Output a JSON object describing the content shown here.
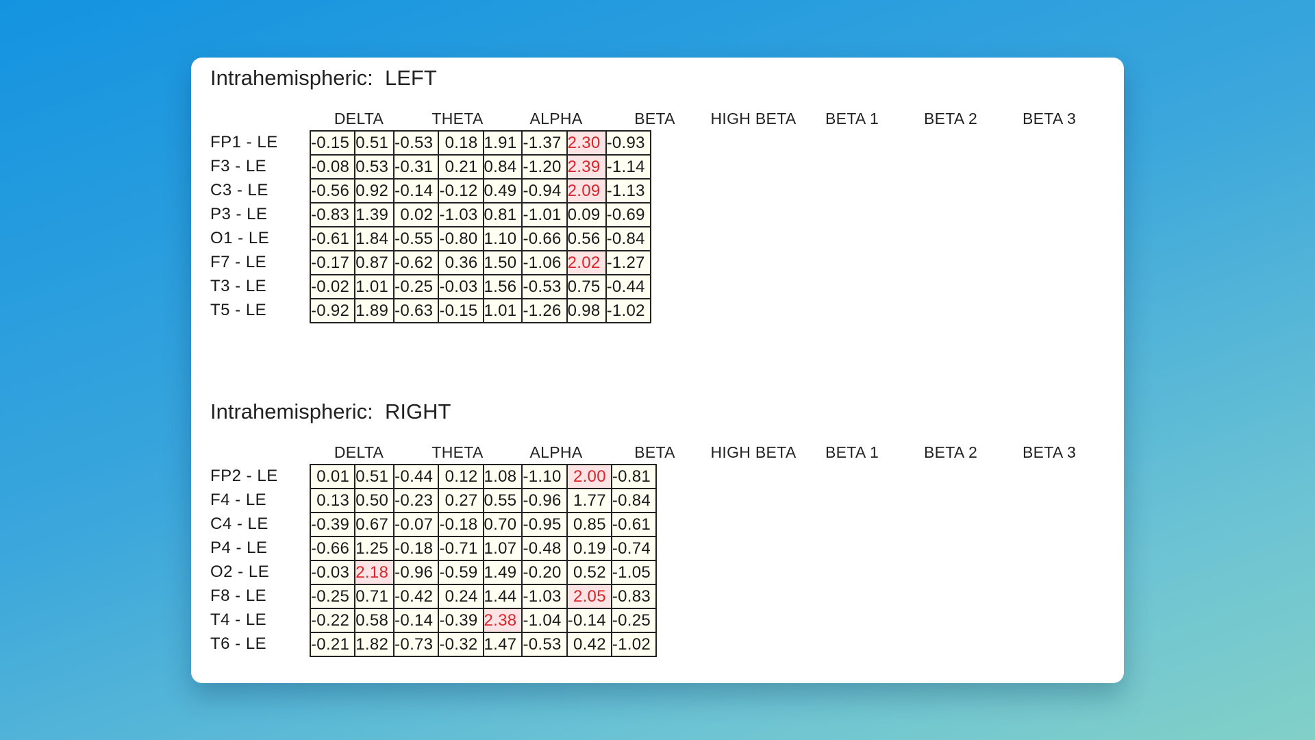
{
  "columns": [
    "DELTA",
    "THETA",
    "ALPHA",
    "BETA",
    "HIGH BETA",
    "BETA 1",
    "BETA 2",
    "BETA 3"
  ],
  "highlight_colors": {
    "background": "#fde3e4",
    "text": "#d8262c"
  },
  "left": {
    "title": "Intrahemispheric:  LEFT",
    "rows": [
      {
        "label": "FP1 - LE",
        "values": [
          "-0.15",
          "0.51",
          "-0.53",
          "0.18",
          "1.91",
          "-1.37",
          "2.30",
          "-0.93"
        ],
        "highlight": [
          6
        ]
      },
      {
        "label": "F3 - LE",
        "values": [
          "-0.08",
          "0.53",
          "-0.31",
          "0.21",
          "0.84",
          "-1.20",
          "2.39",
          "-1.14"
        ],
        "highlight": [
          6
        ]
      },
      {
        "label": "C3 - LE",
        "values": [
          "-0.56",
          "0.92",
          "-0.14",
          "-0.12",
          "0.49",
          "-0.94",
          "2.09",
          "-1.13"
        ],
        "highlight": [
          6
        ]
      },
      {
        "label": "P3 - LE",
        "values": [
          "-0.83",
          "1.39",
          "0.02",
          "-1.03",
          "0.81",
          "-1.01",
          "0.09",
          "-0.69"
        ],
        "highlight": []
      },
      {
        "label": "O1 - LE",
        "values": [
          "-0.61",
          "1.84",
          "-0.55",
          "-0.80",
          "1.10",
          "-0.66",
          "0.56",
          "-0.84"
        ],
        "highlight": []
      },
      {
        "label": "F7 - LE",
        "values": [
          "-0.17",
          "0.87",
          "-0.62",
          "0.36",
          "1.50",
          "-1.06",
          "2.02",
          "-1.27"
        ],
        "highlight": [
          6
        ]
      },
      {
        "label": "T3 - LE",
        "values": [
          "-0.02",
          "1.01",
          "-0.25",
          "-0.03",
          "1.56",
          "-0.53",
          "0.75",
          "-0.44"
        ],
        "highlight": []
      },
      {
        "label": "T5 - LE",
        "values": [
          "-0.92",
          "1.89",
          "-0.63",
          "-0.15",
          "1.01",
          "-1.26",
          "0.98",
          "-1.02"
        ],
        "highlight": []
      }
    ]
  },
  "right": {
    "title": "Intrahemispheric:  RIGHT",
    "rows": [
      {
        "label": "FP2 - LE",
        "values": [
          "0.01",
          "0.51",
          "-0.44",
          "0.12",
          "1.08",
          "-1.10",
          "2.00",
          "-0.81"
        ],
        "highlight": [
          6
        ]
      },
      {
        "label": "F4 - LE",
        "values": [
          "0.13",
          "0.50",
          "-0.23",
          "0.27",
          "0.55",
          "-0.96",
          "1.77",
          "-0.84"
        ],
        "highlight": []
      },
      {
        "label": "C4 - LE",
        "values": [
          "-0.39",
          "0.67",
          "-0.07",
          "-0.18",
          "0.70",
          "-0.95",
          "0.85",
          "-0.61"
        ],
        "highlight": []
      },
      {
        "label": "P4 - LE",
        "values": [
          "-0.66",
          "1.25",
          "-0.18",
          "-0.71",
          "1.07",
          "-0.48",
          "0.19",
          "-0.74"
        ],
        "highlight": []
      },
      {
        "label": "O2 - LE",
        "values": [
          "-0.03",
          "2.18",
          "-0.96",
          "-0.59",
          "1.49",
          "-0.20",
          "0.52",
          "-1.05"
        ],
        "highlight": [
          1
        ]
      },
      {
        "label": "F8 - LE",
        "values": [
          "-0.25",
          "0.71",
          "-0.42",
          "0.24",
          "1.44",
          "-1.03",
          "2.05",
          "-0.83"
        ],
        "highlight": [
          6
        ]
      },
      {
        "label": "T4 - LE",
        "values": [
          "-0.22",
          "0.58",
          "-0.14",
          "-0.39",
          "2.38",
          "-1.04",
          "-0.14",
          "-0.25"
        ],
        "highlight": [
          4
        ]
      },
      {
        "label": "T6 - LE",
        "values": [
          "-0.21",
          "1.82",
          "-0.73",
          "-0.32",
          "1.47",
          "-0.53",
          "0.42",
          "-1.02"
        ],
        "highlight": []
      }
    ]
  }
}
